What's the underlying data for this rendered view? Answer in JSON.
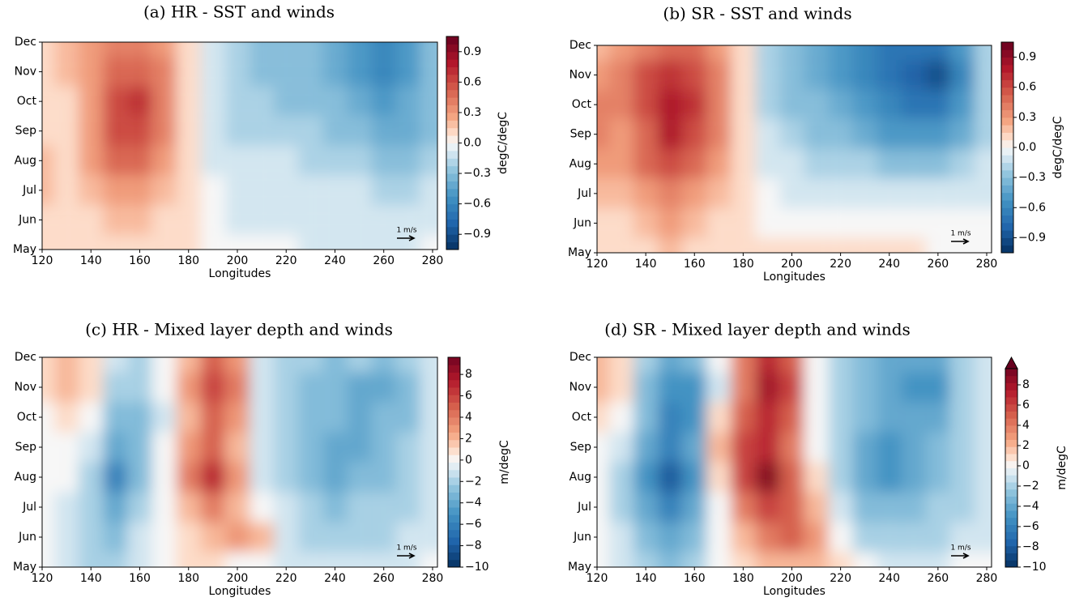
{
  "chart_data": [
    {
      "type": "contour",
      "title": "(a) HR - SST and winds",
      "x_label": "Longitudes",
      "colorbar_label": "degC/degC",
      "quiver_key": "1 m/s",
      "x": [
        120,
        130,
        140,
        150,
        160,
        170,
        180,
        190,
        200,
        210,
        220,
        230,
        240,
        250,
        260,
        270,
        280
      ],
      "y": [
        "May",
        "Jun",
        "Jul",
        "Aug",
        "Sep",
        "Oct",
        "Nov",
        "Dec"
      ],
      "xlim": [
        120,
        282
      ],
      "xticks": [
        120,
        140,
        160,
        180,
        200,
        220,
        240,
        260,
        280
      ],
      "clim": [
        -1.05,
        1.05
      ],
      "colormap": "RdBu_r",
      "cticks": [
        {
          "value": -0.9,
          "label": "−0.9"
        },
        {
          "value": -0.6,
          "label": "−0.6"
        },
        {
          "value": -0.3,
          "label": "−0.3"
        },
        {
          "value": 0,
          "label": "0.0"
        },
        0.3,
        0.6,
        0.9
      ],
      "values": [
        [
          0.1,
          0.1,
          0.1,
          0.1,
          0.1,
          0.1,
          0.1,
          0,
          0,
          0,
          0,
          -0.1,
          -0.1,
          -0.1,
          -0.1,
          -0.1,
          0
        ],
        [
          0.1,
          0.1,
          0.1,
          0.2,
          0.2,
          0.1,
          0.1,
          0,
          -0.1,
          -0.1,
          -0.1,
          -0.1,
          -0.1,
          -0.1,
          -0.1,
          -0.1,
          -0.1
        ],
        [
          0.2,
          0.1,
          0.2,
          0.3,
          0.3,
          0.2,
          0.1,
          0,
          -0.1,
          -0.1,
          -0.1,
          -0.1,
          -0.1,
          -0.1,
          -0.2,
          -0.2,
          -0.1
        ],
        [
          0.2,
          0.1,
          0.3,
          0.5,
          0.5,
          0.3,
          0.1,
          -0.1,
          -0.1,
          -0.1,
          -0.1,
          -0.2,
          -0.2,
          -0.2,
          -0.3,
          -0.3,
          -0.2
        ],
        [
          0.1,
          0.1,
          0.3,
          0.6,
          0.6,
          0.4,
          0.1,
          -0.1,
          -0.2,
          -0.2,
          -0.2,
          -0.2,
          -0.3,
          -0.3,
          -0.4,
          -0.4,
          -0.3
        ],
        [
          0.1,
          0.1,
          0.3,
          0.6,
          0.7,
          0.4,
          0.1,
          -0.1,
          -0.2,
          -0.2,
          -0.3,
          -0.3,
          -0.3,
          -0.4,
          -0.5,
          -0.4,
          -0.3
        ],
        [
          0.1,
          0.2,
          0.3,
          0.5,
          0.5,
          0.4,
          0.1,
          -0.1,
          -0.2,
          -0.3,
          -0.3,
          -0.3,
          -0.4,
          -0.5,
          -0.6,
          -0.5,
          -0.3
        ],
        [
          0.1,
          0.2,
          0.3,
          0.4,
          0.4,
          0.3,
          0.1,
          -0.1,
          -0.2,
          -0.3,
          -0.3,
          -0.3,
          -0.4,
          -0.5,
          -0.6,
          -0.5,
          -0.3
        ]
      ]
    },
    {
      "type": "contour",
      "title": "(b) SR - SST and winds",
      "x_label": "Longitudes",
      "colorbar_label": "degC/degC",
      "quiver_key": "1 m/s",
      "x": [
        120,
        130,
        140,
        150,
        160,
        170,
        180,
        190,
        200,
        210,
        220,
        230,
        240,
        250,
        260,
        270,
        280
      ],
      "y": [
        "May",
        "Jun",
        "Jul",
        "Aug",
        "Sep",
        "Oct",
        "Nov",
        "Dec"
      ],
      "xlim": [
        120,
        282
      ],
      "xticks": [
        120,
        140,
        160,
        180,
        200,
        220,
        240,
        260,
        280
      ],
      "clim": [
        -1.05,
        1.05
      ],
      "colormap": "RdBu_r",
      "cticks": [
        {
          "value": -0.9,
          "label": "−0.9"
        },
        {
          "value": -0.6,
          "label": "−0.6"
        },
        {
          "value": -0.3,
          "label": "−0.3"
        },
        {
          "value": 0,
          "label": "0.0"
        },
        0.3,
        0.6,
        0.9
      ],
      "values": [
        [
          0.1,
          0.1,
          0.1,
          0.2,
          0.1,
          0.1,
          0.1,
          0.1,
          0.1,
          0.1,
          0.1,
          0.1,
          0.1,
          0.1,
          0,
          0,
          0
        ],
        [
          0.1,
          0.1,
          0.2,
          0.3,
          0.2,
          0.1,
          0.1,
          0,
          0,
          0,
          0,
          0,
          0,
          0,
          0,
          0,
          0
        ],
        [
          0.2,
          0.2,
          0.3,
          0.4,
          0.3,
          0.2,
          0.1,
          0,
          -0.1,
          -0.1,
          -0.1,
          -0.1,
          -0.1,
          -0.1,
          -0.1,
          -0.1,
          -0.1
        ],
        [
          0.3,
          0.3,
          0.5,
          0.6,
          0.5,
          0.3,
          0.1,
          -0.1,
          -0.1,
          -0.2,
          -0.2,
          -0.2,
          -0.3,
          -0.3,
          -0.3,
          -0.2,
          -0.1
        ],
        [
          0.4,
          0.3,
          0.5,
          0.8,
          0.6,
          0.4,
          0.1,
          -0.1,
          -0.2,
          -0.3,
          -0.3,
          -0.4,
          -0.5,
          -0.5,
          -0.5,
          -0.4,
          -0.2
        ],
        [
          0.4,
          0.4,
          0.6,
          0.8,
          0.7,
          0.4,
          0.1,
          -0.2,
          -0.3,
          -0.3,
          -0.4,
          -0.5,
          -0.6,
          -0.7,
          -0.7,
          -0.5,
          -0.2
        ],
        [
          0.3,
          0.4,
          0.6,
          0.7,
          0.6,
          0.4,
          0.1,
          -0.2,
          -0.3,
          -0.4,
          -0.5,
          -0.6,
          -0.7,
          -0.8,
          -0.9,
          -0.6,
          -0.2
        ],
        [
          0.2,
          0.3,
          0.4,
          0.5,
          0.5,
          0.3,
          0.1,
          -0.2,
          -0.3,
          -0.4,
          -0.5,
          -0.6,
          -0.7,
          -0.7,
          -0.7,
          -0.5,
          -0.2
        ]
      ]
    },
    {
      "type": "contour",
      "title": "(c) HR - Mixed layer depth and winds",
      "x_label": "Longitudes",
      "colorbar_label": "m/degC",
      "quiver_key": "1 m/s",
      "x": [
        120,
        130,
        140,
        150,
        160,
        170,
        180,
        190,
        200,
        210,
        220,
        230,
        240,
        250,
        260,
        270,
        280
      ],
      "y": [
        "May",
        "Jun",
        "Jul",
        "Aug",
        "Sep",
        "Oct",
        "Nov",
        "Dec"
      ],
      "xlim": [
        120,
        282
      ],
      "xticks": [
        120,
        140,
        160,
        180,
        200,
        220,
        240,
        260,
        280
      ],
      "clim": [
        -10,
        9.6
      ],
      "colormap": "RdBu_r",
      "cticks": [
        {
          "value": -10,
          "label": "−10"
        },
        {
          "value": -8,
          "label": "−8"
        },
        {
          "value": -6,
          "label": "−6"
        },
        {
          "value": -4,
          "label": "−4"
        },
        {
          "value": -2,
          "label": "−2"
        },
        0,
        2,
        4,
        6,
        8
      ],
      "values": [
        [
          0,
          -1,
          -2,
          -2,
          -1,
          0,
          1,
          1,
          0,
          0,
          -1,
          -1,
          -1,
          -1,
          -1,
          -1,
          0
        ],
        [
          0,
          -1,
          -2,
          -3,
          -1,
          0,
          1,
          2,
          3,
          2,
          -1,
          -2,
          -2,
          -2,
          -2,
          -1,
          -1
        ],
        [
          0,
          -1,
          -2,
          -4,
          -2,
          0,
          2,
          4,
          2,
          0,
          -1,
          -2,
          -3,
          -2,
          -2,
          -2,
          -1
        ],
        [
          0,
          0,
          -2,
          -6,
          -3,
          0,
          4,
          7,
          3,
          -1,
          -2,
          -3,
          -4,
          -3,
          -3,
          -2,
          -1
        ],
        [
          0,
          0,
          -1,
          -4,
          -3,
          0,
          3,
          5,
          2,
          -1,
          -2,
          -3,
          -4,
          -4,
          -3,
          -2,
          -1
        ],
        [
          0,
          1,
          0,
          -3,
          -3,
          -1,
          2,
          5,
          3,
          -1,
          -2,
          -3,
          -3,
          -4,
          -3,
          -3,
          -1
        ],
        [
          1,
          2,
          1,
          -2,
          -2,
          0,
          3,
          6,
          4,
          -1,
          -2,
          -3,
          -3,
          -4,
          -4,
          -3,
          -1
        ],
        [
          1,
          2,
          1,
          -1,
          -2,
          0,
          2,
          5,
          3,
          -1,
          -2,
          -2,
          -3,
          -2,
          -3,
          -2,
          -1
        ]
      ]
    },
    {
      "type": "contour",
      "title": "(d) SR - Mixed layer depth and winds",
      "x_label": "Longitudes",
      "colorbar_label": "m/degC",
      "quiver_key": "1 m/s",
      "x": [
        120,
        130,
        140,
        150,
        160,
        170,
        180,
        190,
        200,
        210,
        220,
        230,
        240,
        250,
        260,
        270,
        280
      ],
      "y": [
        "May",
        "Jun",
        "Jul",
        "Aug",
        "Sep",
        "Oct",
        "Nov",
        "Dec"
      ],
      "xlim": [
        120,
        282
      ],
      "xticks": [
        120,
        140,
        160,
        180,
        200,
        220,
        240,
        260,
        280
      ],
      "clim": [
        -10,
        9.6
      ],
      "colormap": "RdBu_r",
      "extend": "max",
      "cticks": [
        {
          "value": -10,
          "label": "−10"
        },
        {
          "value": -8,
          "label": "−8"
        },
        {
          "value": -6,
          "label": "−6"
        },
        {
          "value": -4,
          "label": "−4"
        },
        {
          "value": -2,
          "label": "−2"
        },
        0,
        2,
        4,
        6,
        8
      ],
      "values": [
        [
          0,
          -1,
          -2,
          -3,
          -2,
          0,
          1,
          2,
          2,
          2,
          1,
          0,
          -1,
          -1,
          -1,
          0,
          0
        ],
        [
          0,
          -1,
          -3,
          -4,
          -3,
          0,
          2,
          4,
          5,
          3,
          0,
          -2,
          -2,
          -2,
          -2,
          -1,
          -1
        ],
        [
          0,
          -2,
          -4,
          -6,
          -4,
          0,
          4,
          6,
          5,
          2,
          -1,
          -3,
          -3,
          -3,
          -2,
          -2,
          -1
        ],
        [
          0,
          -2,
          -5,
          -8,
          -5,
          1,
          6,
          9,
          5,
          1,
          -2,
          -4,
          -5,
          -4,
          -3,
          -2,
          -1
        ],
        [
          0,
          -1,
          -4,
          -6,
          -4,
          2,
          6,
          7,
          4,
          0,
          -2,
          -4,
          -5,
          -4,
          -3,
          -2,
          -1
        ],
        [
          1,
          0,
          -3,
          -6,
          -5,
          1,
          5,
          7,
          5,
          0,
          -2,
          -3,
          -4,
          -4,
          -4,
          -2,
          -1
        ],
        [
          2,
          1,
          -3,
          -5,
          -5,
          -1,
          4,
          8,
          6,
          0,
          -2,
          -3,
          -4,
          -5,
          -5,
          -2,
          -1
        ],
        [
          2,
          1,
          -2,
          -4,
          -3,
          0,
          4,
          7,
          5,
          0,
          -2,
          -3,
          -4,
          -4,
          -4,
          -2,
          -1
        ]
      ]
    }
  ]
}
